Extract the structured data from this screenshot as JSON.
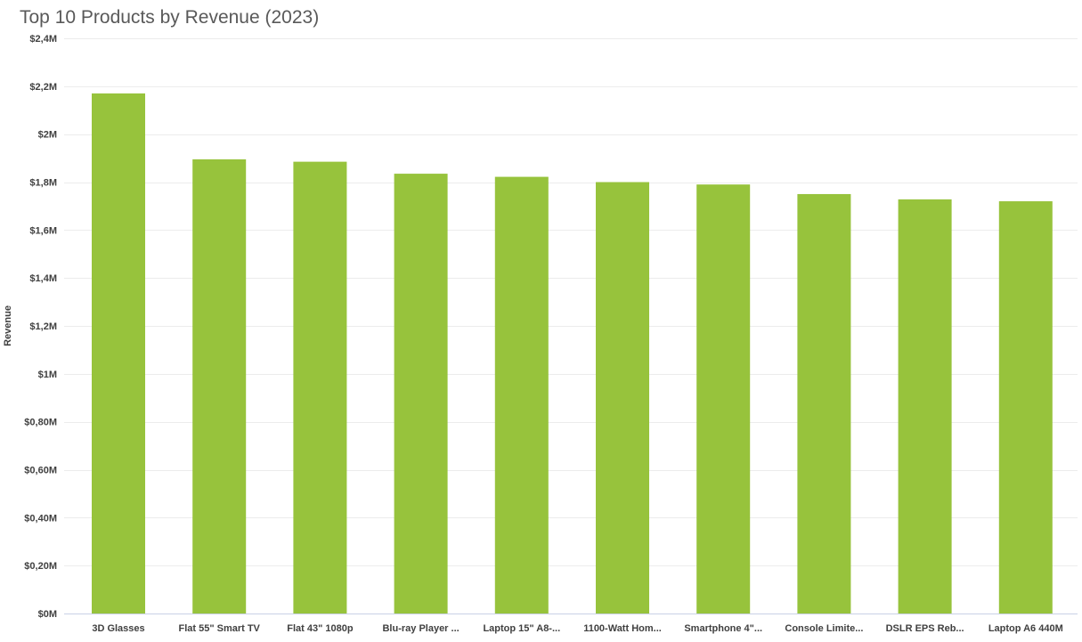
{
  "chart_data": {
    "type": "bar",
    "title": "Top 10 Products by Revenue (2023)",
    "xlabel": "",
    "ylabel": "Revenue",
    "ylim": [
      0,
      2.4
    ],
    "yticks": [
      0,
      0.2,
      0.4,
      0.6,
      0.8,
      1.0,
      1.2,
      1.4,
      1.6,
      1.8,
      2.0,
      2.2,
      2.4
    ],
    "ytick_labels": [
      "$0M",
      "$0,20M",
      "$0,40M",
      "$0,60M",
      "$0,80M",
      "$1M",
      "$1,2M",
      "$1,4M",
      "$1,6M",
      "$1,8M",
      "$2M",
      "$2,2M",
      "$2,4M"
    ],
    "categories": [
      "3D Glasses",
      "Flat 55\" Smart TV",
      "Flat 43\" 1080p",
      "Blu-ray Player ...",
      "Laptop 15\" A8-...",
      "1100-Watt Hom...",
      "Smartphone 4\"...",
      "Console Limite...",
      "DSLR EPS Reb...",
      "Laptop A6 440M"
    ],
    "values": [
      2.17,
      1.895,
      1.885,
      1.835,
      1.822,
      1.8,
      1.79,
      1.75,
      1.728,
      1.72
    ],
    "grid": true,
    "legend": "none",
    "colors": {
      "bar": "#97c33c",
      "grid": "#ececec",
      "baseline": "#c9d1e6",
      "text": "#404040",
      "title": "#595959"
    }
  }
}
